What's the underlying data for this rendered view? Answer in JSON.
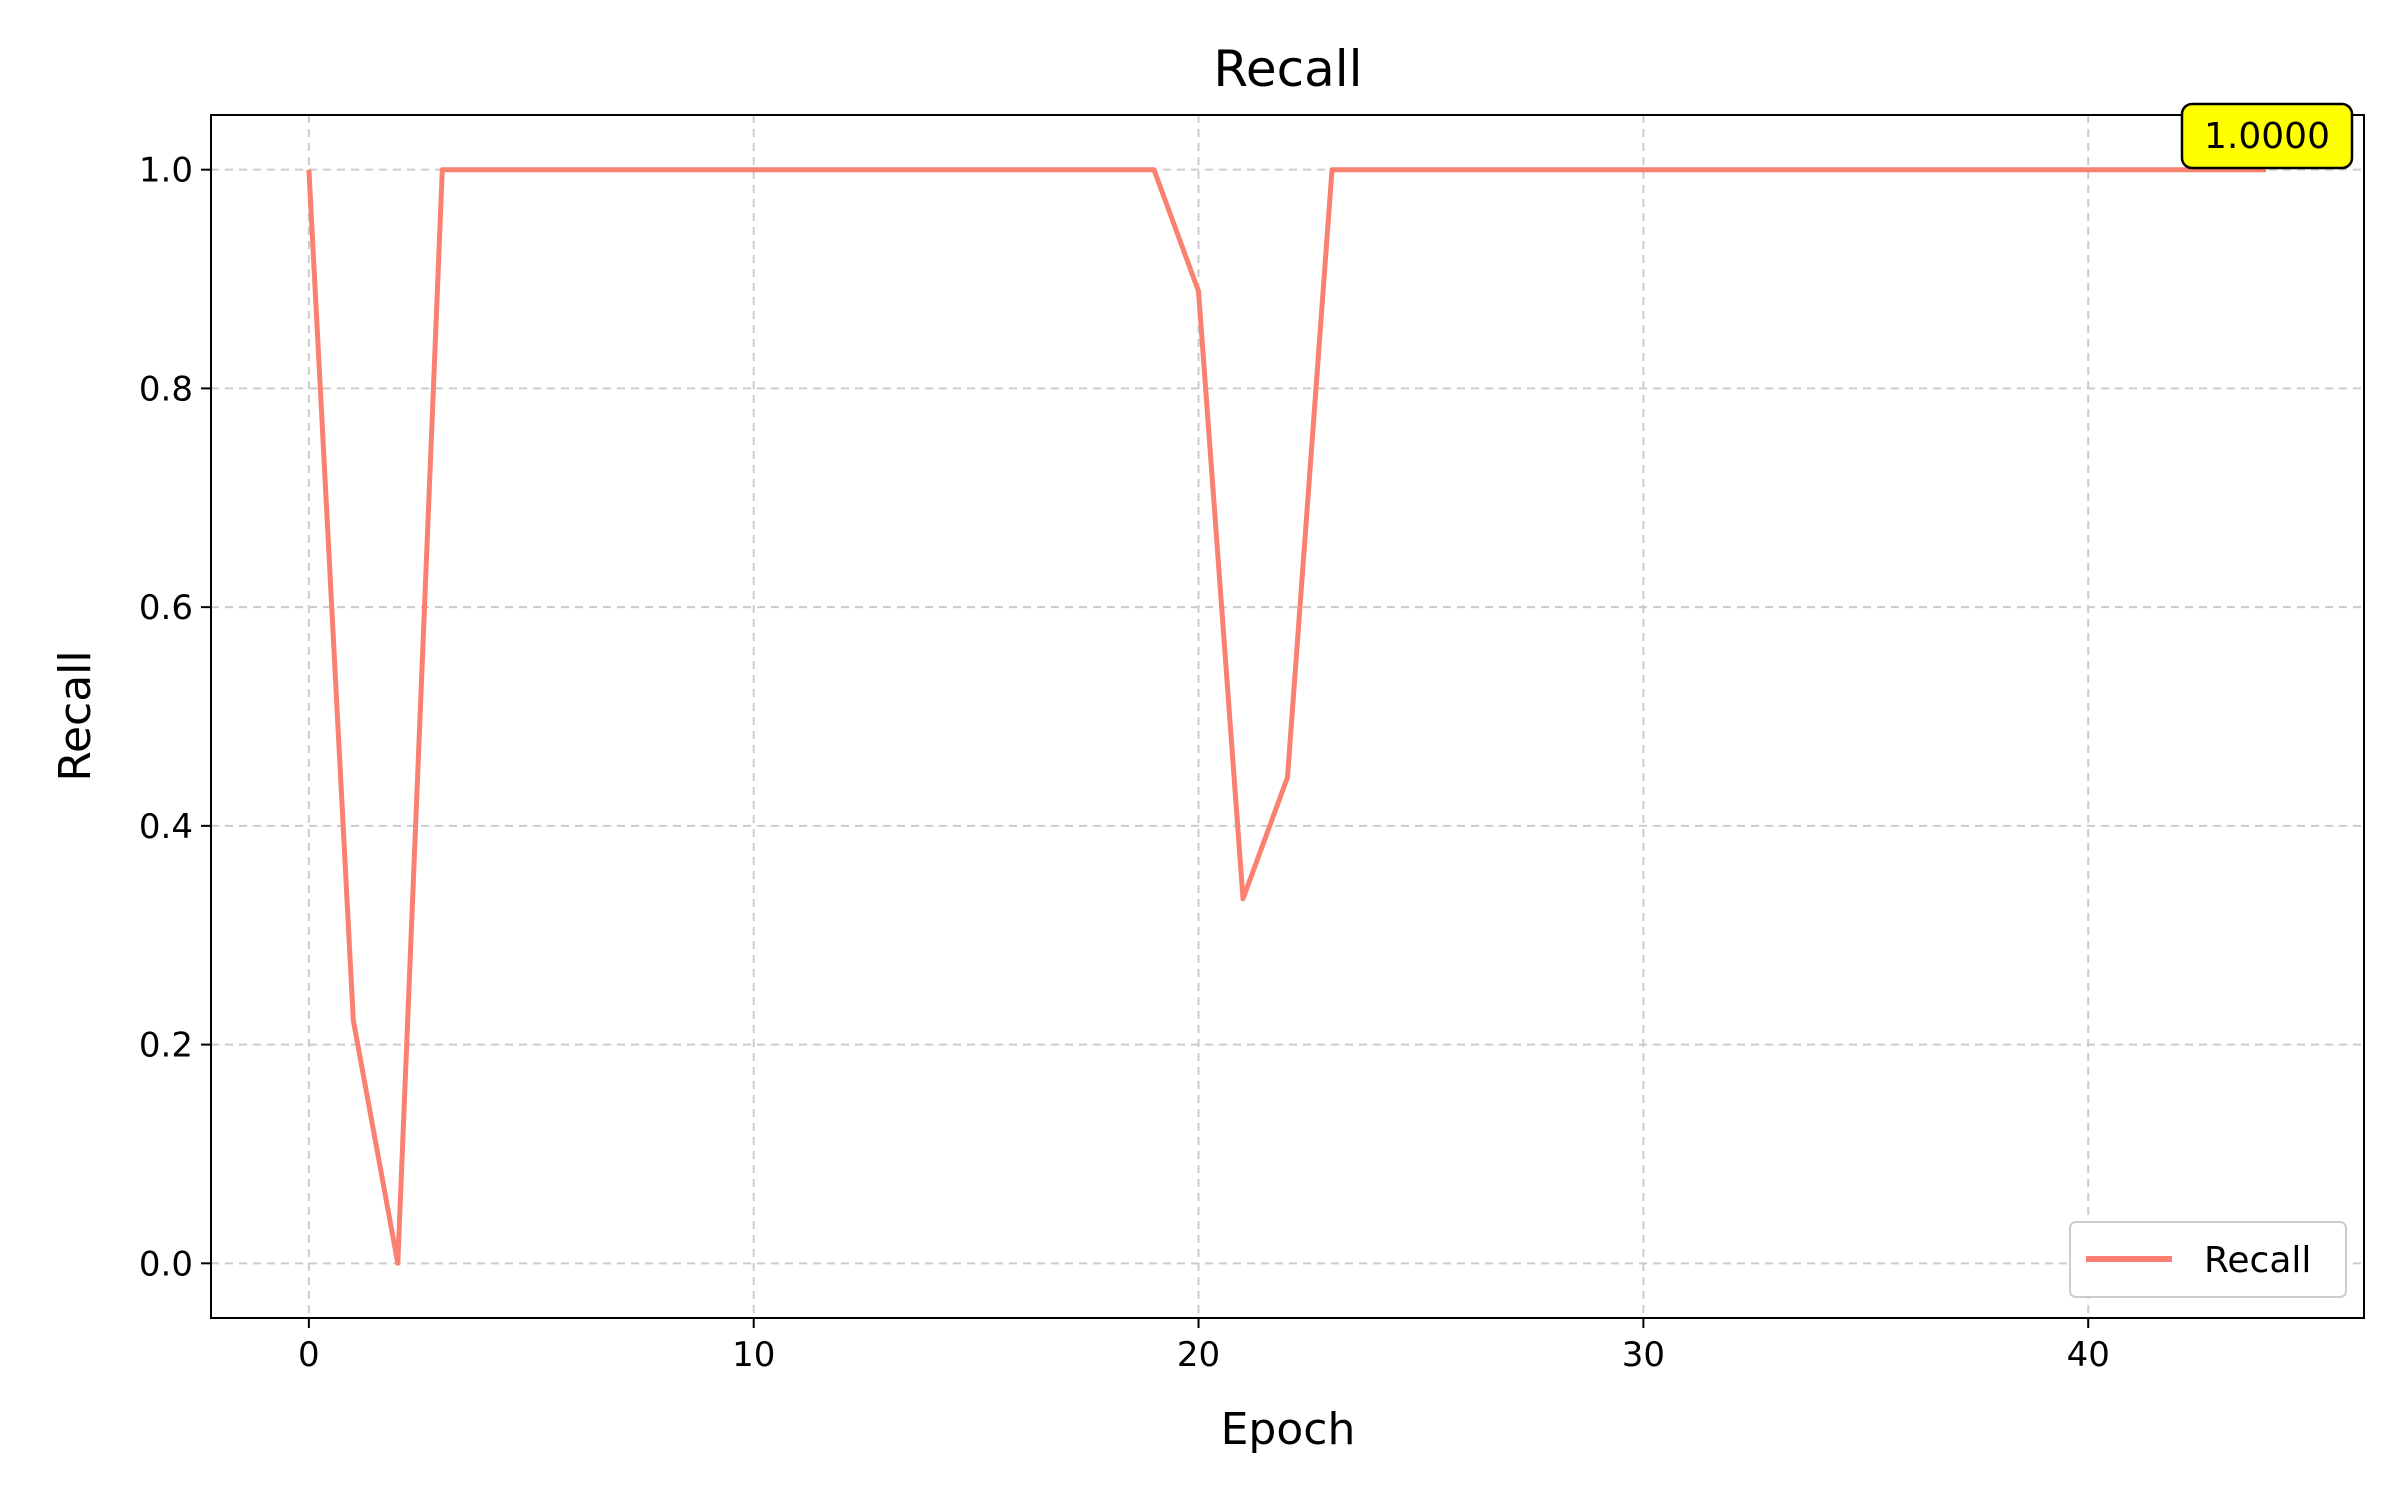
{
  "chart_data": {
    "type": "line",
    "title": "Recall",
    "xlabel": "Epoch",
    "ylabel": "Recall",
    "xlim": [
      -2.2,
      46.2
    ],
    "ylim": [
      -0.05,
      1.05
    ],
    "x_ticks": [
      0,
      10,
      20,
      30,
      40
    ],
    "y_ticks": [
      0.0,
      0.2,
      0.4,
      0.6,
      0.8,
      1.0
    ],
    "grid": true,
    "legend_position": "lower right",
    "series": [
      {
        "name": "Recall",
        "color": "#fa8072",
        "x": [
          0,
          1,
          2,
          3,
          4,
          5,
          6,
          7,
          8,
          9,
          10,
          11,
          12,
          13,
          14,
          15,
          16,
          17,
          18,
          19,
          20,
          21,
          22,
          23,
          24,
          25,
          26,
          27,
          28,
          29,
          30,
          31,
          32,
          33,
          34,
          35,
          36,
          37,
          38,
          39,
          40,
          41,
          42,
          43,
          44
        ],
        "y": [
          1.0,
          0.2222,
          0.0,
          1.0,
          1.0,
          1.0,
          1.0,
          1.0,
          1.0,
          1.0,
          1.0,
          1.0,
          1.0,
          1.0,
          1.0,
          1.0,
          1.0,
          1.0,
          1.0,
          1.0,
          0.8889,
          0.3333,
          0.4444,
          1.0,
          1.0,
          1.0,
          1.0,
          1.0,
          1.0,
          1.0,
          1.0,
          1.0,
          1.0,
          1.0,
          1.0,
          1.0,
          1.0,
          1.0,
          1.0,
          1.0,
          1.0,
          1.0,
          1.0,
          1.0,
          1.0
        ]
      }
    ],
    "annotation": {
      "text": "1.0000",
      "x": 44,
      "y": 1.0,
      "background": "#ffff00"
    }
  }
}
